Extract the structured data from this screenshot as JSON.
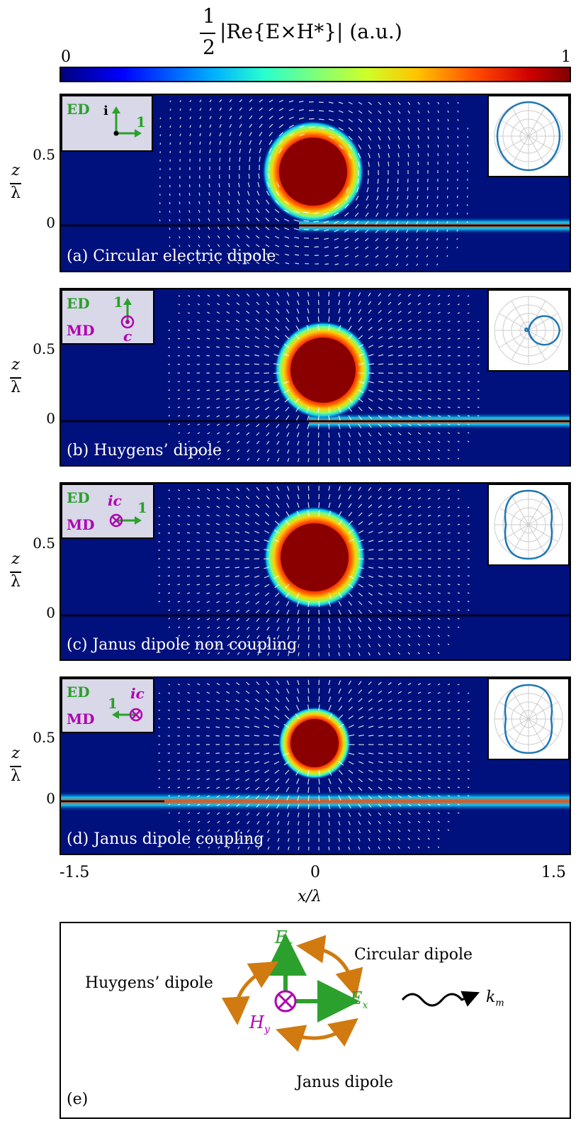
{
  "colorbar": {
    "title_prefix": "1",
    "title_denominator": "2",
    "title_expr": "|Re{E×H*}| (a.u.)",
    "min_label": "0",
    "max_label": "1"
  },
  "axes": {
    "y_ticks": [
      "0.5",
      "0"
    ],
    "y_label_top": "z",
    "y_label_bottom": "λ",
    "x_ticks": [
      "-1.5",
      "0",
      "1.5"
    ],
    "x_label": "x/λ"
  },
  "panels": [
    {
      "caption": "(a) Circular electric dipole",
      "ed_label": "ED",
      "md_label": "",
      "ed_arrow_top": "i",
      "ed_arrow_right": "1",
      "md_symbol": ""
    },
    {
      "caption": "(b) Huygens’ dipole",
      "ed_label": "ED",
      "md_label": "MD",
      "ed_arrow_top": "1",
      "ed_arrow_right": "",
      "md_symbol": "c"
    },
    {
      "caption": "(c) Janus dipole non coupling",
      "ed_label": "ED",
      "md_label": "MD",
      "ed_arrow_top": "",
      "ed_arrow_right": "1",
      "md_symbol": "ic"
    },
    {
      "caption": "(d) Janus dipole coupling",
      "ed_label": "ED",
      "md_label": "MD",
      "ed_arrow_top": "",
      "ed_arrow_right": "1",
      "md_symbol": "ic"
    }
  ],
  "diagram": {
    "panel_label": "(e)",
    "ez_label": "E",
    "ez_sub": "z",
    "ex_label": "E",
    "ex_sub": "x",
    "hy_label": "H",
    "hy_sub": "y",
    "circular": "Circular dipole",
    "huygens": "Huygens’ dipole",
    "janus": "Janus dipole",
    "km_label": "k",
    "km_sub": "m"
  },
  "colors": {
    "ed_green": "#2ca02c",
    "md_magenta": "#b000b0",
    "arrow_orange": "#d07a10",
    "polar_blue": "#1f77b4",
    "field_bg": "#00107c"
  }
}
